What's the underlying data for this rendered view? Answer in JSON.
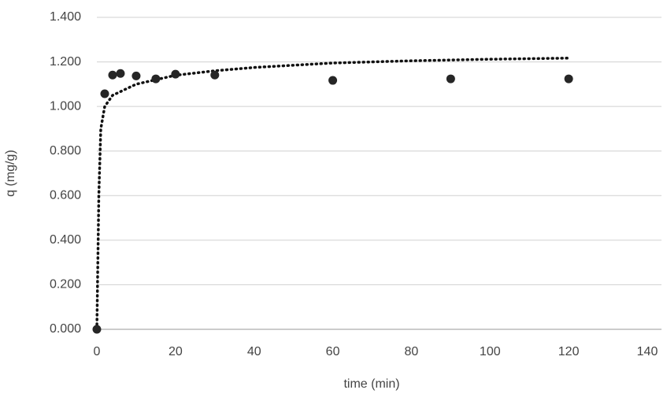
{
  "chart_data": {
    "type": "scatter",
    "x_label": "time (min)",
    "y_label": "q (mg/g)",
    "series": [
      {
        "color": "#262626",
        "style": "markers",
        "x": [
          0,
          2,
          4,
          6,
          10,
          15,
          20,
          30,
          60,
          90,
          120
        ],
        "values": [
          0,
          1.057,
          1.141,
          1.148,
          1.137,
          1.124,
          1.145,
          1.141,
          1.117,
          1.124,
          1.124
        ]
      },
      {
        "color": "#111111",
        "style": "dotted-line",
        "x": [
          0,
          0.5,
          1,
          2,
          4,
          10,
          20,
          30,
          40,
          60,
          80,
          100,
          120
        ],
        "values": [
          0,
          0.6,
          0.9,
          1.0,
          1.05,
          1.1,
          1.14,
          1.16,
          1.175,
          1.195,
          1.205,
          1.212,
          1.217
        ]
      }
    ],
    "xlim": [
      0,
      140
    ],
    "xticks": [
      0,
      20,
      40,
      60,
      80,
      100,
      120,
      140
    ],
    "ylim": [
      0,
      1.4
    ],
    "yticks": [
      {
        "value": 0,
        "label": "0.000"
      },
      {
        "value": 0.2,
        "label": "0.200"
      },
      {
        "value": 0.4,
        "label": "0.400"
      },
      {
        "value": 0.6,
        "label": "0.600"
      },
      {
        "value": 0.8,
        "label": "0.800"
      },
      {
        "value": 1.0,
        "label": "1.000"
      },
      {
        "value": 1.2,
        "label": "1.200"
      },
      {
        "value": 1.4,
        "label": "1.400"
      }
    ],
    "grid": true
  }
}
